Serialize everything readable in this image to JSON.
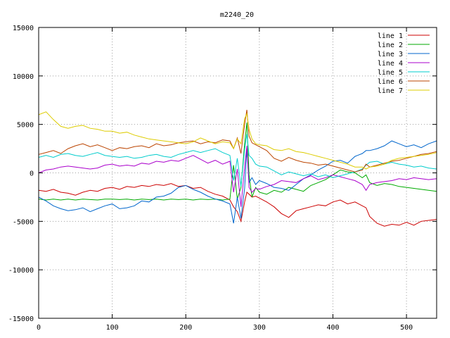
{
  "chart_data": {
    "type": "line",
    "title": "m2240_20",
    "xlabel": "",
    "ylabel": "",
    "xlim": [
      0,
      541
    ],
    "ylim": [
      -15000,
      15000
    ],
    "grid": true,
    "legend_position": "top-right",
    "x_ticks": [
      0,
      100,
      200,
      300,
      400,
      500
    ],
    "y_ticks": [
      -15000,
      -10000,
      -5000,
      0,
      5000,
      10000,
      15000
    ],
    "x": [
      0,
      10,
      20,
      30,
      40,
      50,
      60,
      70,
      80,
      90,
      100,
      110,
      120,
      130,
      140,
      150,
      160,
      170,
      180,
      190,
      200,
      210,
      220,
      230,
      240,
      250,
      260,
      265,
      270,
      275,
      280,
      283,
      286,
      290,
      295,
      300,
      310,
      320,
      330,
      340,
      350,
      360,
      370,
      380,
      390,
      400,
      410,
      420,
      430,
      440,
      445,
      450,
      460,
      470,
      480,
      490,
      500,
      510,
      520,
      530,
      541
    ],
    "series": [
      {
        "name": "line 1",
        "color": "#cc0000",
        "values": [
          -1800,
          -1900,
          -1700,
          -2000,
          -2100,
          -2300,
          -2000,
          -1800,
          -1900,
          -1600,
          -1500,
          -1700,
          -1400,
          -1500,
          -1300,
          -1400,
          -1200,
          -1300,
          -1100,
          -1400,
          -1300,
          -1600,
          -1500,
          -1900,
          -2200,
          -2400,
          -2800,
          -3500,
          -4000,
          -5000,
          -3000,
          -2000,
          -2200,
          -2500,
          -2400,
          -2600,
          -3000,
          -3500,
          -4200,
          -4600,
          -3900,
          -3700,
          -3500,
          -3300,
          -3400,
          -3000,
          -2800,
          -3200,
          -3000,
          -3400,
          -3600,
          -4500,
          -5200,
          -5500,
          -5300,
          -5400,
          -5100,
          -5400,
          -5000,
          -4900,
          -4800
        ]
      },
      {
        "name": "line 2",
        "color": "#00aa00",
        "values": [
          -2700,
          -2800,
          -2700,
          -2800,
          -2700,
          -2800,
          -2700,
          -2750,
          -2800,
          -2700,
          -2700,
          -2750,
          -2700,
          -2800,
          -2700,
          -2750,
          -2700,
          -2800,
          -2700,
          -2750,
          -2700,
          -2800,
          -2700,
          -2750,
          -2700,
          -2800,
          -2700,
          800,
          -2700,
          -1500,
          3000,
          5200,
          -200,
          -2500,
          -1500,
          -2000,
          -2200,
          -1800,
          -2000,
          -1500,
          -1700,
          -1900,
          -1300,
          -1000,
          -700,
          -200,
          300,
          100,
          0,
          -500,
          -200,
          -1000,
          -1300,
          -1100,
          -1200,
          -1400,
          -1500,
          -1600,
          -1700,
          -1800,
          -1900
        ]
      },
      {
        "name": "line 3",
        "color": "#0066cc",
        "values": [
          -2500,
          -2900,
          -3400,
          -3700,
          -3900,
          -3800,
          -3600,
          -4000,
          -3700,
          -3400,
          -3200,
          -3700,
          -3600,
          -3400,
          -2900,
          -3000,
          -2500,
          -2400,
          -2100,
          -1500,
          -1300,
          -1700,
          -2000,
          -2400,
          -2700,
          -2900,
          -3200,
          -5200,
          -2500,
          -4700,
          -1600,
          2500,
          -1000,
          -500,
          -1200,
          -800,
          -1100,
          -1500,
          -1600,
          -1800,
          -1200,
          -600,
          -200,
          300,
          700,
          1200,
          1300,
          1000,
          1700,
          2000,
          2300,
          2300,
          2500,
          2800,
          3300,
          3000,
          2700,
          2900,
          2600,
          3000,
          3300
        ]
      },
      {
        "name": "line 4",
        "color": "#aa00cc",
        "values": [
          0,
          300,
          400,
          600,
          700,
          600,
          500,
          400,
          500,
          800,
          900,
          700,
          800,
          700,
          1000,
          900,
          1200,
          1100,
          1300,
          1200,
          1500,
          1800,
          1400,
          1000,
          1300,
          900,
          1200,
          -2000,
          400,
          -3500,
          600,
          2800,
          -1500,
          -2000,
          -1600,
          -1700,
          -1400,
          -1200,
          -800,
          -900,
          -1000,
          -600,
          -300,
          -700,
          -500,
          -200,
          -400,
          -600,
          -800,
          -1200,
          -1800,
          -1200,
          -1000,
          -900,
          -800,
          -600,
          -700,
          -500,
          -600,
          -700,
          -600
        ]
      },
      {
        "name": "line 5",
        "color": "#00cccc",
        "values": [
          1600,
          1800,
          1600,
          1900,
          2000,
          1800,
          1700,
          1900,
          2100,
          1800,
          1700,
          1600,
          1700,
          1500,
          1600,
          1800,
          1900,
          1700,
          1600,
          1900,
          2100,
          2300,
          2100,
          2300,
          2500,
          2100,
          1800,
          -800,
          1500,
          -1400,
          2400,
          4000,
          1800,
          1500,
          900,
          700,
          600,
          200,
          -200,
          100,
          -100,
          -300,
          -100,
          -400,
          -200,
          -500,
          -300,
          -100,
          100,
          400,
          800,
          1100,
          1200,
          900,
          1100,
          900,
          800,
          600,
          700,
          500,
          400
        ]
      },
      {
        "name": "line 6",
        "color": "#bb4400",
        "values": [
          1900,
          2100,
          2300,
          2000,
          2500,
          2800,
          3000,
          2700,
          2900,
          2600,
          2300,
          2600,
          2500,
          2700,
          2800,
          2600,
          3000,
          2800,
          2900,
          3100,
          3200,
          3300,
          3000,
          3200,
          3100,
          3400,
          3300,
          2500,
          3600,
          2000,
          5000,
          6500,
          3800,
          3100,
          2900,
          2700,
          2300,
          1500,
          1200,
          1600,
          1300,
          1100,
          1000,
          800,
          900,
          700,
          500,
          300,
          100,
          300,
          900,
          600,
          800,
          1000,
          1200,
          1300,
          1500,
          1700,
          1900,
          2000,
          2200
        ]
      },
      {
        "name": "line 7",
        "color": "#ddcc00",
        "values": [
          6000,
          6300,
          5500,
          4800,
          4600,
          4800,
          4900,
          4600,
          4500,
          4300,
          4300,
          4100,
          4200,
          3900,
          3700,
          3500,
          3400,
          3300,
          3200,
          3100,
          3000,
          3200,
          3600,
          3300,
          3000,
          3200,
          3100,
          2500,
          3500,
          3000,
          5600,
          6100,
          4500,
          3500,
          3000,
          2900,
          2800,
          2400,
          2300,
          2500,
          2200,
          2100,
          1900,
          1700,
          1500,
          1300,
          1100,
          900,
          600,
          600,
          400,
          600,
          700,
          900,
          1300,
          1500,
          1600,
          1700,
          1800,
          1900,
          2100
        ]
      }
    ]
  }
}
